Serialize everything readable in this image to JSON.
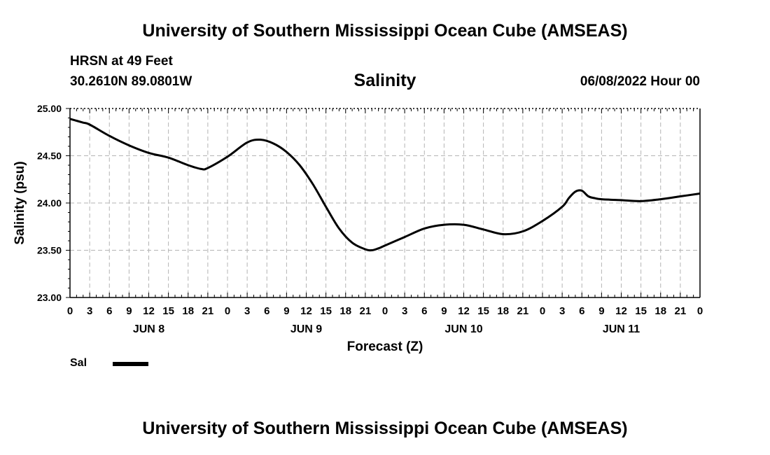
{
  "header": {
    "title": "University of Southern Mississippi Ocean Cube (AMSEAS)",
    "station": "HRSN at 49 Feet",
    "coords": "30.2610N  89.0801W",
    "variable": "Salinity",
    "datetime": "06/08/2022 Hour 00"
  },
  "footer": {
    "title": "University of Southern Mississippi Ocean Cube (AMSEAS)"
  },
  "legend": {
    "label": "Sal",
    "color": "#000000"
  },
  "chart_data": {
    "type": "line",
    "title": "Salinity",
    "xlabel": "Forecast (Z)",
    "ylabel": "Salinity (psu)",
    "xlim": [
      0,
      96
    ],
    "ylim": [
      23.0,
      25.0
    ],
    "grid": true,
    "yticks": [
      23.0,
      23.5,
      24.0,
      24.5,
      25.0
    ],
    "ytick_labels": [
      "23.00",
      "23.50",
      "24.00",
      "24.50",
      "25.00"
    ],
    "xticks": [
      0,
      3,
      6,
      9,
      12,
      15,
      18,
      21,
      24,
      27,
      30,
      33,
      36,
      39,
      42,
      45,
      48,
      51,
      54,
      57,
      60,
      63,
      66,
      69,
      72,
      75,
      78,
      81,
      84,
      87,
      90,
      93,
      96
    ],
    "xtick_labels": [
      "0",
      "3",
      "6",
      "9",
      "12",
      "15",
      "18",
      "21",
      "0",
      "3",
      "6",
      "9",
      "12",
      "15",
      "18",
      "21",
      "0",
      "3",
      "6",
      "9",
      "12",
      "15",
      "18",
      "21",
      "0",
      "3",
      "6",
      "9",
      "12",
      "15",
      "18",
      "21",
      "0"
    ],
    "day_labels": [
      {
        "label": "JUN 8",
        "x": 12
      },
      {
        "label": "JUN 9",
        "x": 36
      },
      {
        "label": "JUN 10",
        "x": 60
      },
      {
        "label": "JUN 11",
        "x": 84
      }
    ],
    "series": [
      {
        "name": "Sal",
        "color": "#000000",
        "x": [
          0,
          1,
          2,
          3,
          6,
          9,
          12,
          15,
          18,
          20,
          21,
          24,
          27,
          29,
          31,
          33,
          35,
          37,
          39,
          41,
          43,
          45,
          46,
          47,
          48,
          51,
          54,
          57,
          60,
          63,
          66,
          69,
          72,
          75,
          76,
          77,
          78,
          79,
          80,
          81,
          84,
          87,
          90,
          93,
          96
        ],
        "values": [
          24.89,
          24.87,
          24.85,
          24.83,
          24.71,
          24.61,
          24.53,
          24.48,
          24.4,
          24.36,
          24.37,
          24.49,
          24.64,
          24.67,
          24.63,
          24.54,
          24.4,
          24.2,
          23.96,
          23.73,
          23.58,
          23.51,
          23.5,
          23.52,
          23.55,
          23.64,
          23.73,
          23.77,
          23.77,
          23.72,
          23.67,
          23.7,
          23.81,
          23.96,
          24.05,
          24.12,
          24.13,
          24.07,
          24.05,
          24.04,
          24.03,
          24.02,
          24.04,
          24.07,
          24.1
        ]
      }
    ]
  }
}
